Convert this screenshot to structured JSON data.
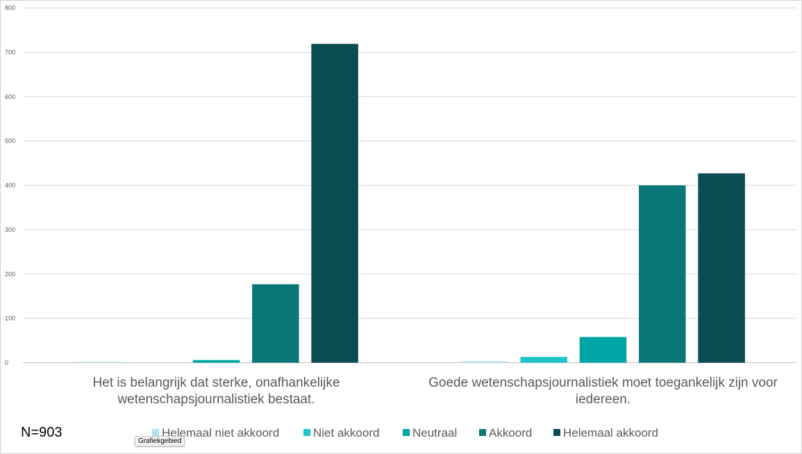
{
  "note": "N=903",
  "tooltip": "Grafiekgebied",
  "chart_data": {
    "type": "bar",
    "categories": [
      [
        "Het is belangrijk dat sterke, onafhankelijke",
        "wetenschapsjournalistiek bestaat."
      ],
      [
        "Goede wetenschapsjournalistiek moet toegankelijk zijn voor",
        "iedereen."
      ]
    ],
    "ylim": [
      0,
      800
    ],
    "yticks": [
      0,
      100,
      200,
      300,
      400,
      500,
      600,
      700,
      800
    ],
    "grid": true,
    "legend_position": "bottom",
    "series": [
      {
        "name": "Helemaal niet akkoord",
        "color": "#aee6ea",
        "values": [
          2,
          3
        ]
      },
      {
        "name": "Niet akkoord",
        "color": "#1cc6c6",
        "values": [
          0,
          13
        ]
      },
      {
        "name": "Neutraal",
        "color": "#00a6a6",
        "values": [
          6,
          58
        ]
      },
      {
        "name": "Akkoord",
        "color": "#0b7677",
        "values": [
          177,
          400
        ]
      },
      {
        "name": "Helemaal akkoord",
        "color": "#0a4c4f",
        "values": [
          719,
          427
        ]
      }
    ]
  }
}
